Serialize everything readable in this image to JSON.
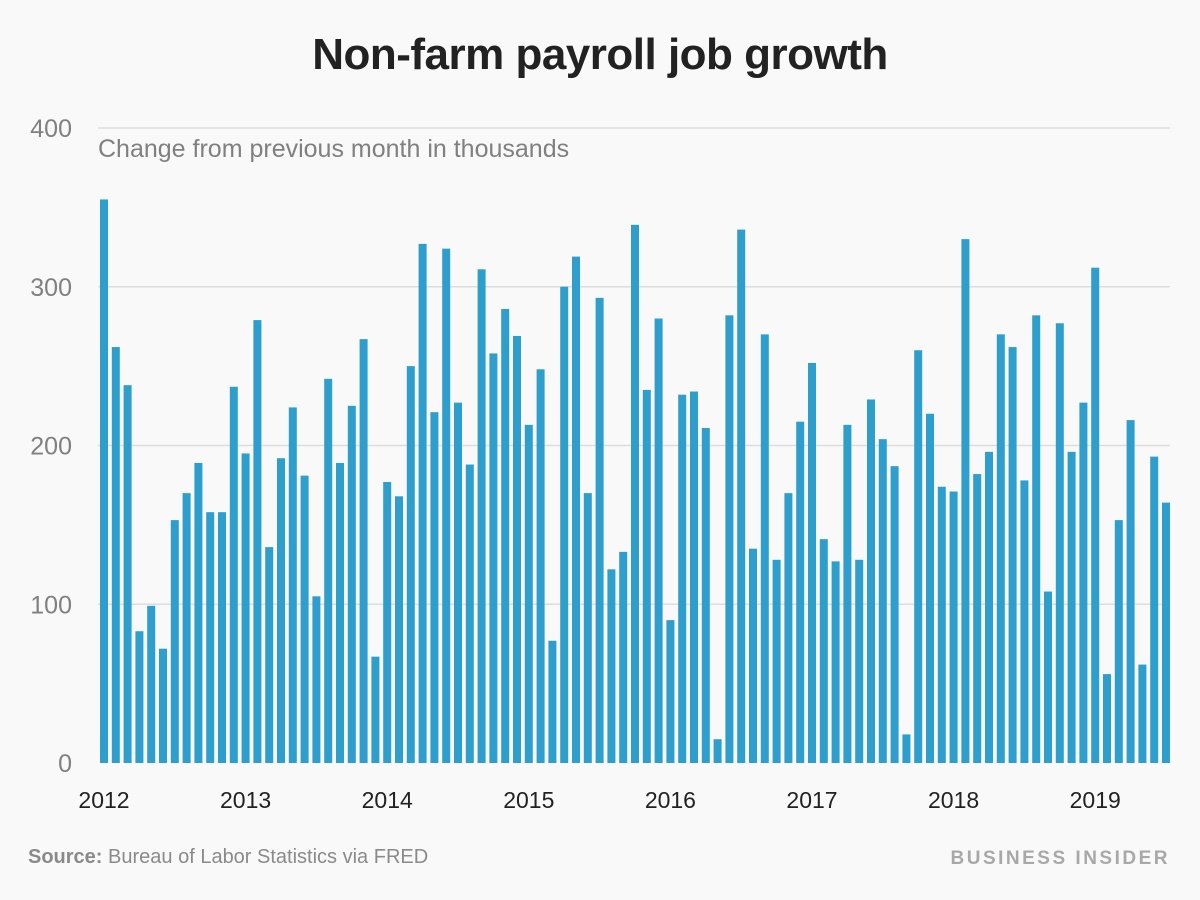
{
  "chart_data": {
    "type": "bar",
    "title": "Non-farm payroll job growth",
    "subtitle": "Change from previous month in thousands",
    "xlabel": "",
    "ylabel": "",
    "ylim": [
      0,
      400
    ],
    "yticks": [
      0,
      100,
      200,
      300,
      400
    ],
    "xtick_labels": [
      "2012",
      "2013",
      "2014",
      "2015",
      "2016",
      "2017",
      "2018",
      "2019"
    ],
    "grid": true,
    "start": "2012-01",
    "end": "2019-07",
    "values": [
      355,
      262,
      238,
      83,
      99,
      72,
      153,
      170,
      189,
      158,
      158,
      237,
      195,
      279,
      136,
      192,
      224,
      181,
      105,
      242,
      189,
      225,
      267,
      67,
      177,
      168,
      250,
      327,
      221,
      324,
      227,
      188,
      311,
      258,
      286,
      269,
      213,
      248,
      77,
      300,
      319,
      170,
      293,
      122,
      133,
      339,
      235,
      280,
      90,
      232,
      234,
      211,
      15,
      282,
      336,
      135,
      270,
      128,
      170,
      215,
      252,
      141,
      127,
      213,
      128,
      229,
      204,
      187,
      18,
      260,
      220,
      174,
      171,
      330,
      182,
      196,
      270,
      262,
      178,
      282,
      108,
      277,
      196,
      227,
      312,
      56,
      153,
      216,
      62,
      193,
      164
    ],
    "bar_color": "#2e9fcc",
    "source_label": "Source:",
    "source_text": "Bureau of Labor Statistics via FRED",
    "logo": "BUSINESS INSIDER"
  }
}
